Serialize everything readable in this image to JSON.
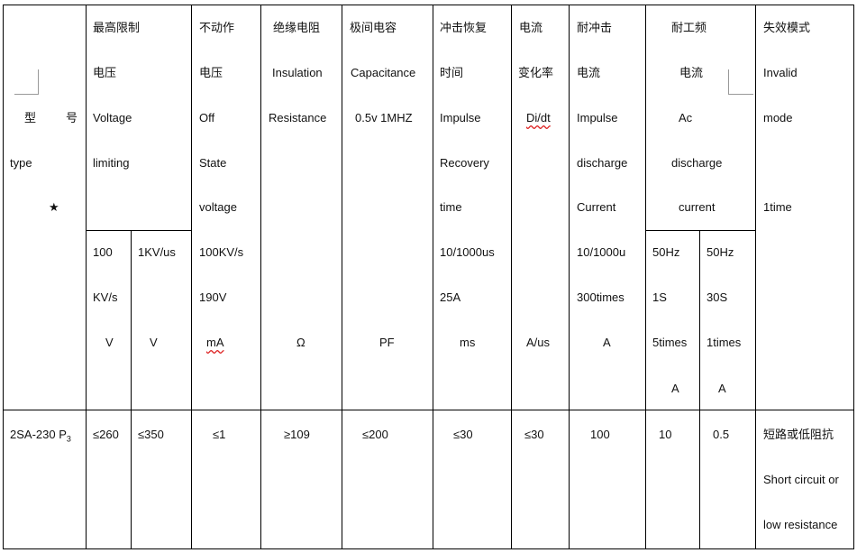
{
  "header": {
    "type": {
      "zh1": "型",
      "zh2": "号",
      "en": "type",
      "star": "★"
    },
    "limit_voltage": {
      "l1": "最高限制",
      "l2": "电压",
      "l3": "Voltage",
      "l4": "limiting",
      "sub1": {
        "l1": "100",
        "l2": "KV/s",
        "unit": "V"
      },
      "sub2": {
        "l1": "1KV/us",
        "unit": "V"
      }
    },
    "off_state": {
      "l1": "不动作",
      "l2": "电压",
      "l3": "Off",
      "l4": "State",
      "l5": "voltage",
      "l6": "100KV/s",
      "l7": "190V",
      "unit": "mA"
    },
    "insulation": {
      "l1": "绝缘电阻",
      "l2": "Insulation",
      "l3": "Resistance",
      "unit": "Ω"
    },
    "capacitance": {
      "l1": "极间电容",
      "l2": "Capacitance",
      "l3": "0.5v 1MHZ",
      "unit": "PF"
    },
    "recovery": {
      "l1": "冲击恢复",
      "l2": "时间",
      "l3": "Impulse",
      "l4": "Recovery",
      "l5": "time",
      "l6": "10/1000us",
      "l7": "25A",
      "unit": "ms"
    },
    "didt": {
      "l1": "电流",
      "l2": "变化率",
      "l3": "Di/dt",
      "unit": "A/us"
    },
    "impulse": {
      "l1": "耐冲击",
      "l2": "电流",
      "l3": "Impulse",
      "l4": "discharge",
      "l5": "Current",
      "l6": "10/1000u",
      "l7": "300times",
      "unit": "A"
    },
    "ac": {
      "l1": "耐工频",
      "l2": "电流",
      "l3": "Ac",
      "l4": "discharge",
      "l5": "current",
      "sub1": {
        "l1": "50Hz",
        "l2": "1S",
        "l3": "5times",
        "unit": "A"
      },
      "sub2": {
        "l1": "50Hz",
        "l2": "30S",
        "l3": "1times",
        "unit": "A"
      }
    },
    "failure": {
      "l1": "失效模式",
      "l2": "Invalid",
      "l3": "mode",
      "l4": "1time"
    }
  },
  "row": {
    "type": "2SA-230 P",
    "type_sub": "3",
    "v100": "≤260",
    "v1k": "≤350",
    "off": "≤1",
    "ins": "≥109",
    "cap": "≤200",
    "rec": "≤30",
    "didt": "≤30",
    "imp": "100",
    "ac1": "10",
    "ac30": "0.5",
    "fail_zh": "短路或低阻抗",
    "fail_en1": "Short circuit or",
    "fail_en2": "low resistance"
  }
}
